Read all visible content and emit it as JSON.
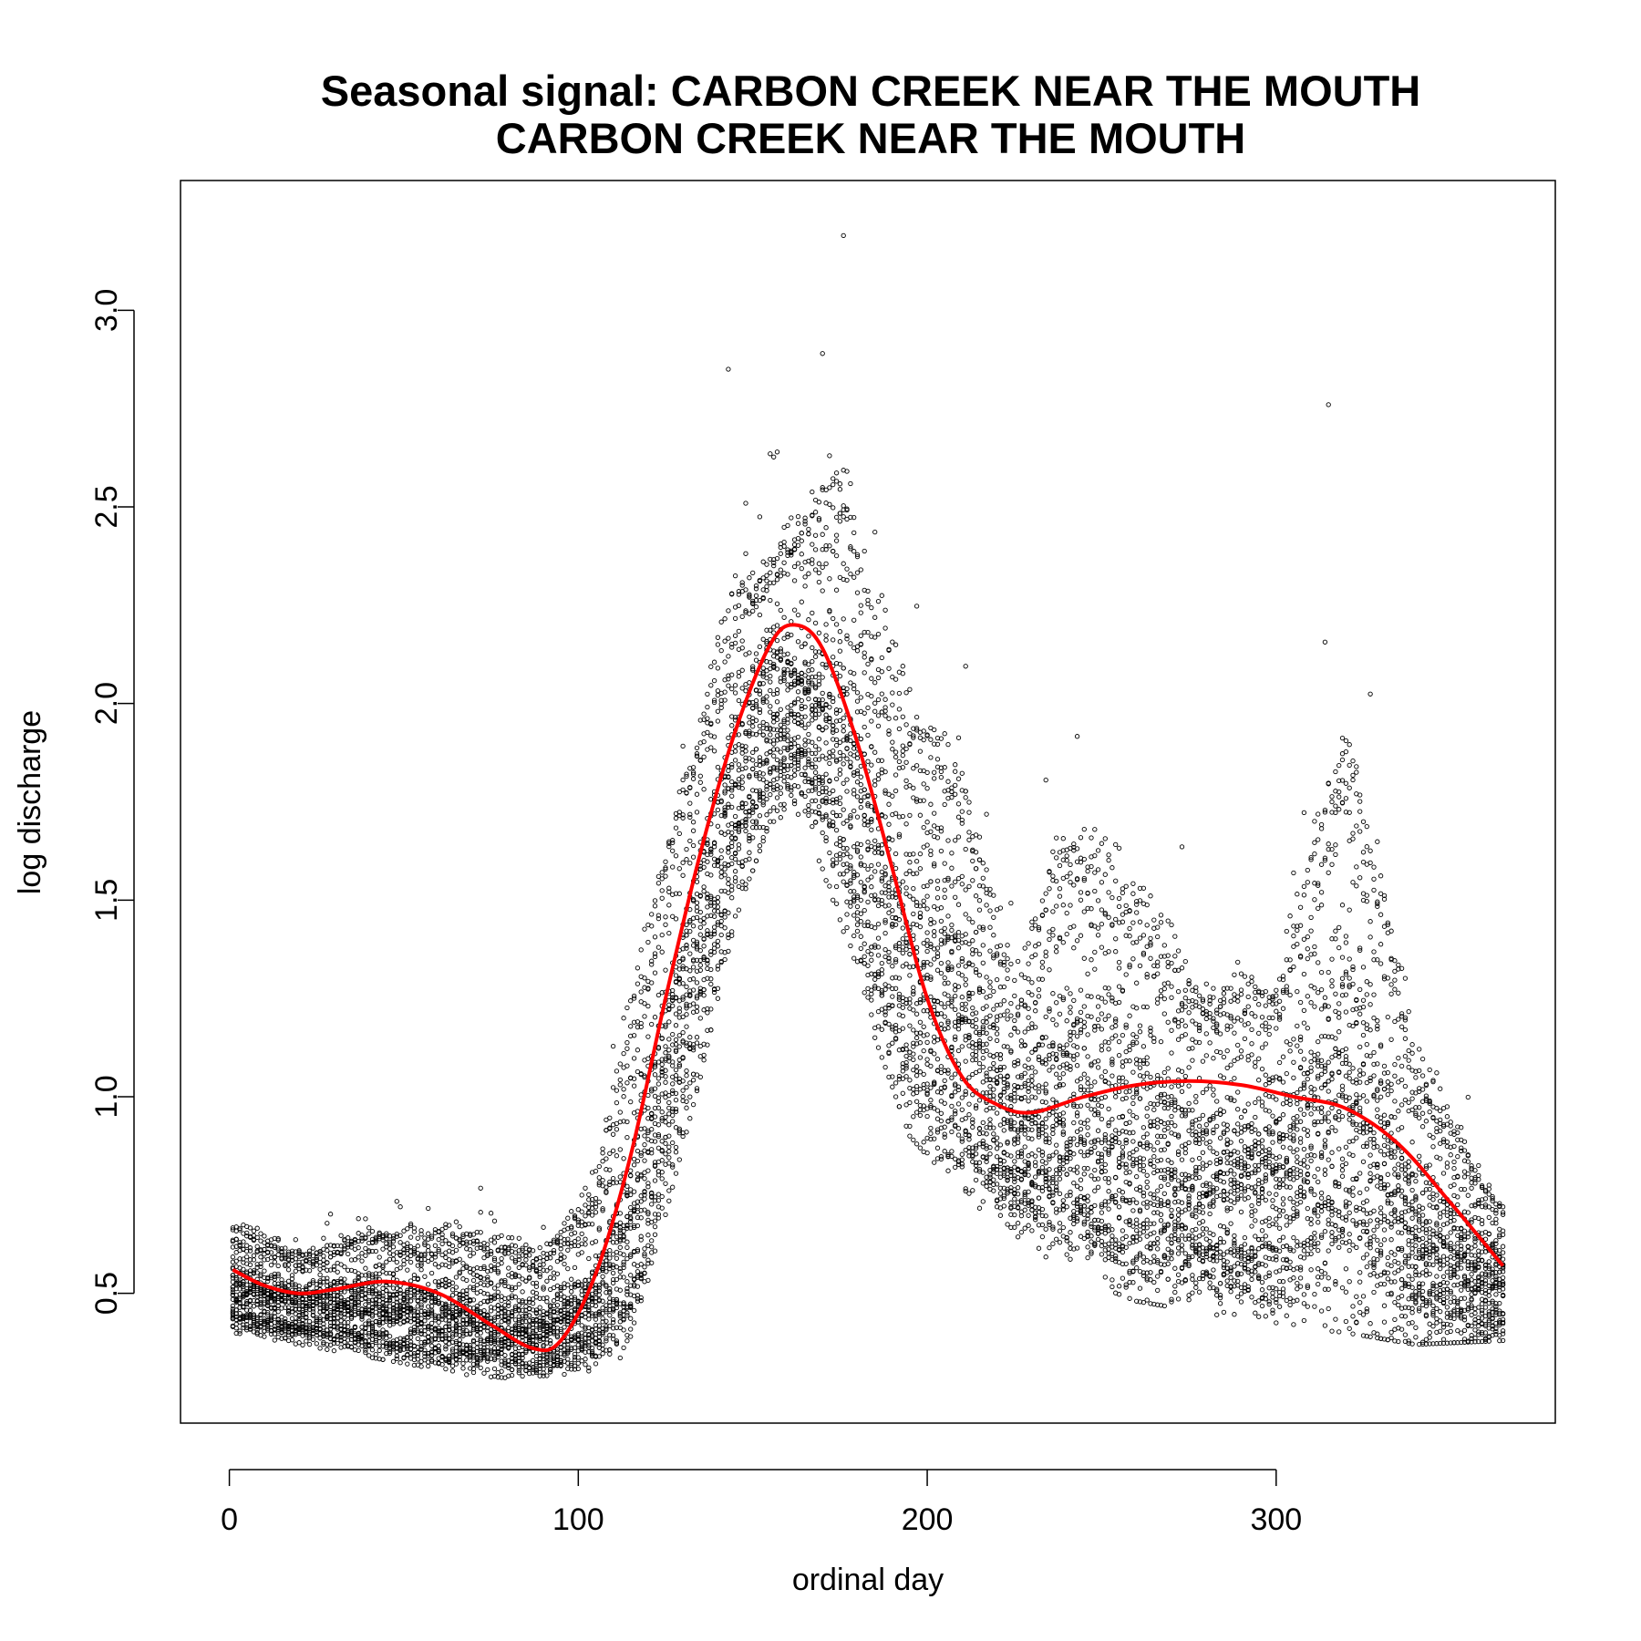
{
  "chart_data": {
    "type": "scatter",
    "title": "Seasonal signal: CARBON CREEK NEAR THE MOUTH",
    "subtitle": "CARBON CREEK NEAR THE MOUTH",
    "xlabel": "ordinal day",
    "ylabel": "log discharge",
    "xlim": [
      -14,
      380
    ],
    "ylim": [
      0.17,
      3.33
    ],
    "x_ticks": [
      0,
      100,
      200,
      300
    ],
    "x_tick_labels": [
      "0",
      "100",
      "200",
      "300"
    ],
    "y_ticks": [
      0.5,
      1.0,
      1.5,
      2.0,
      2.5,
      3.0
    ],
    "y_tick_labels": [
      "0.5",
      "1.0",
      "1.5",
      "2.0",
      "2.5",
      "3.0"
    ],
    "grid": false,
    "legend": "none",
    "colors": {
      "points": "#000000",
      "smooth": "#ff0000"
    },
    "series": [
      {
        "type": "scatter",
        "marker": "open-circle",
        "description_values": "daily log discharge, ~30 years overlaid by day of year",
        "seasonal_envelope": {
          "x": [
            1,
            20,
            45,
            70,
            90,
            105,
            115,
            125,
            135,
            145,
            155,
            165,
            175,
            185,
            195,
            210,
            225,
            240,
            260,
            280,
            300,
            320,
            340,
            365
          ],
          "low": [
            0.4,
            0.37,
            0.33,
            0.29,
            0.28,
            0.28,
            0.32,
            0.7,
            1.05,
            1.45,
            1.7,
            1.7,
            1.45,
            1.15,
            0.9,
            0.75,
            0.65,
            0.55,
            0.48,
            0.45,
            0.42,
            0.4,
            0.37,
            0.38
          ],
          "high": [
            0.83,
            0.75,
            0.85,
            0.86,
            0.78,
            1.05,
            1.7,
            2.1,
            2.45,
            2.75,
            2.8,
            2.85,
            3.2,
            2.9,
            2.6,
            2.45,
            1.6,
            2.3,
            2.05,
            1.75,
            1.8,
            2.75,
            1.5,
            0.9
          ]
        },
        "notable_points": [
          {
            "x": 176,
            "y": 3.19
          },
          {
            "x": 315,
            "y": 2.76
          },
          {
            "x": 170,
            "y": 2.89
          },
          {
            "x": 143,
            "y": 2.85
          }
        ]
      },
      {
        "type": "line",
        "smooth": true,
        "x": [
          1,
          10,
          20,
          30,
          45,
          60,
          75,
          87,
          95,
          105,
          115,
          125,
          135,
          145,
          155,
          162,
          170,
          180,
          190,
          200,
          210,
          220,
          230,
          245,
          260,
          275,
          290,
          305,
          320,
          335,
          350,
          365
        ],
        "y": [
          0.56,
          0.52,
          0.5,
          0.51,
          0.53,
          0.5,
          0.42,
          0.36,
          0.38,
          0.55,
          0.85,
          1.25,
          1.62,
          1.93,
          2.15,
          2.2,
          2.14,
          1.9,
          1.58,
          1.25,
          1.05,
          0.98,
          0.96,
          1.0,
          1.03,
          1.04,
          1.03,
          1.0,
          0.97,
          0.88,
          0.73,
          0.57
        ]
      }
    ]
  }
}
